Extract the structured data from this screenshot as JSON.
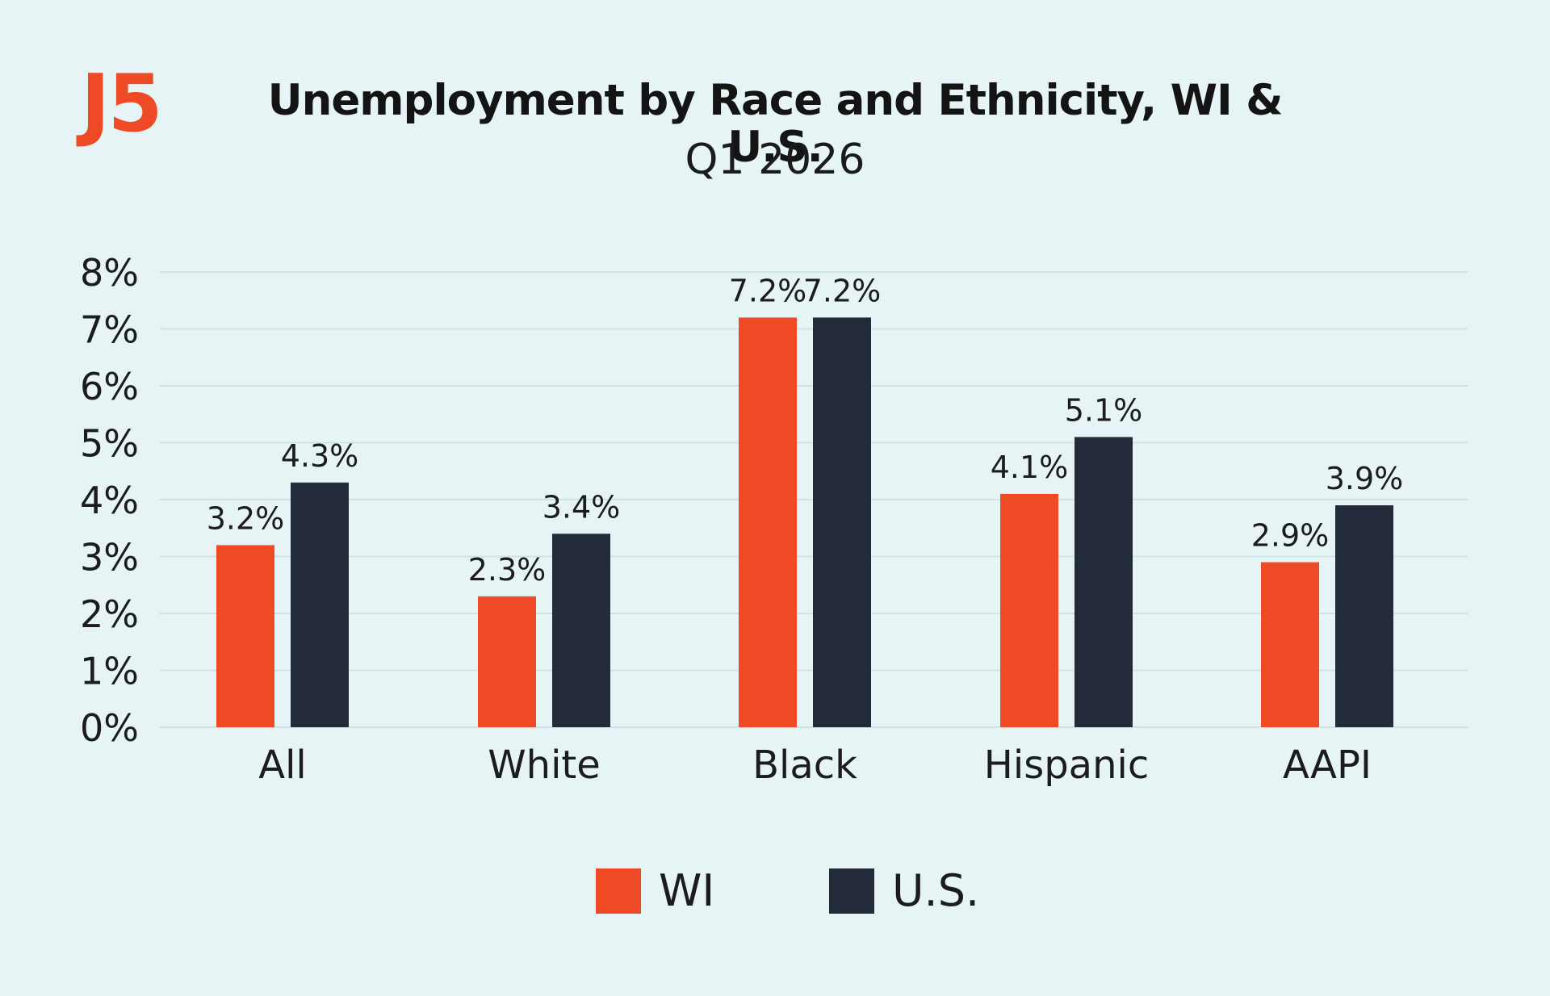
{
  "badge": "J5",
  "title": "Unemployment by Race and Ethnicity, WI & U.S.",
  "subtitle": "Q1 2026",
  "colors": {
    "wi": "#ee4a26",
    "us": "#232a39",
    "grid": "#cfe3e6",
    "background": "#e6f4f5"
  },
  "chart_data": {
    "type": "bar",
    "title": "Unemployment by Race and Ethnicity, WI & U.S.",
    "subtitle": "Q1 2026",
    "categories": [
      "All",
      "White",
      "Black",
      "Hispanic",
      "AAPI"
    ],
    "series": [
      {
        "name": "WI",
        "values": [
          3.2,
          2.3,
          7.2,
          4.1,
          2.9
        ],
        "labels": [
          "3.2%",
          "2.3%",
          "7.2%",
          "4.1%",
          "2.9%"
        ]
      },
      {
        "name": "U.S.",
        "values": [
          4.3,
          3.4,
          7.2,
          5.1,
          3.9
        ],
        "labels": [
          "4.3%",
          "3.4%",
          "7.2%",
          "5.1%",
          "3.9%"
        ]
      }
    ],
    "yticks": [
      "0%",
      "1%",
      "2%",
      "3%",
      "4%",
      "5%",
      "6%",
      "7%",
      "8%"
    ],
    "ylim": [
      0,
      8
    ],
    "xlabel": "",
    "ylabel": "",
    "grid": true,
    "legend": "bottom-center"
  }
}
